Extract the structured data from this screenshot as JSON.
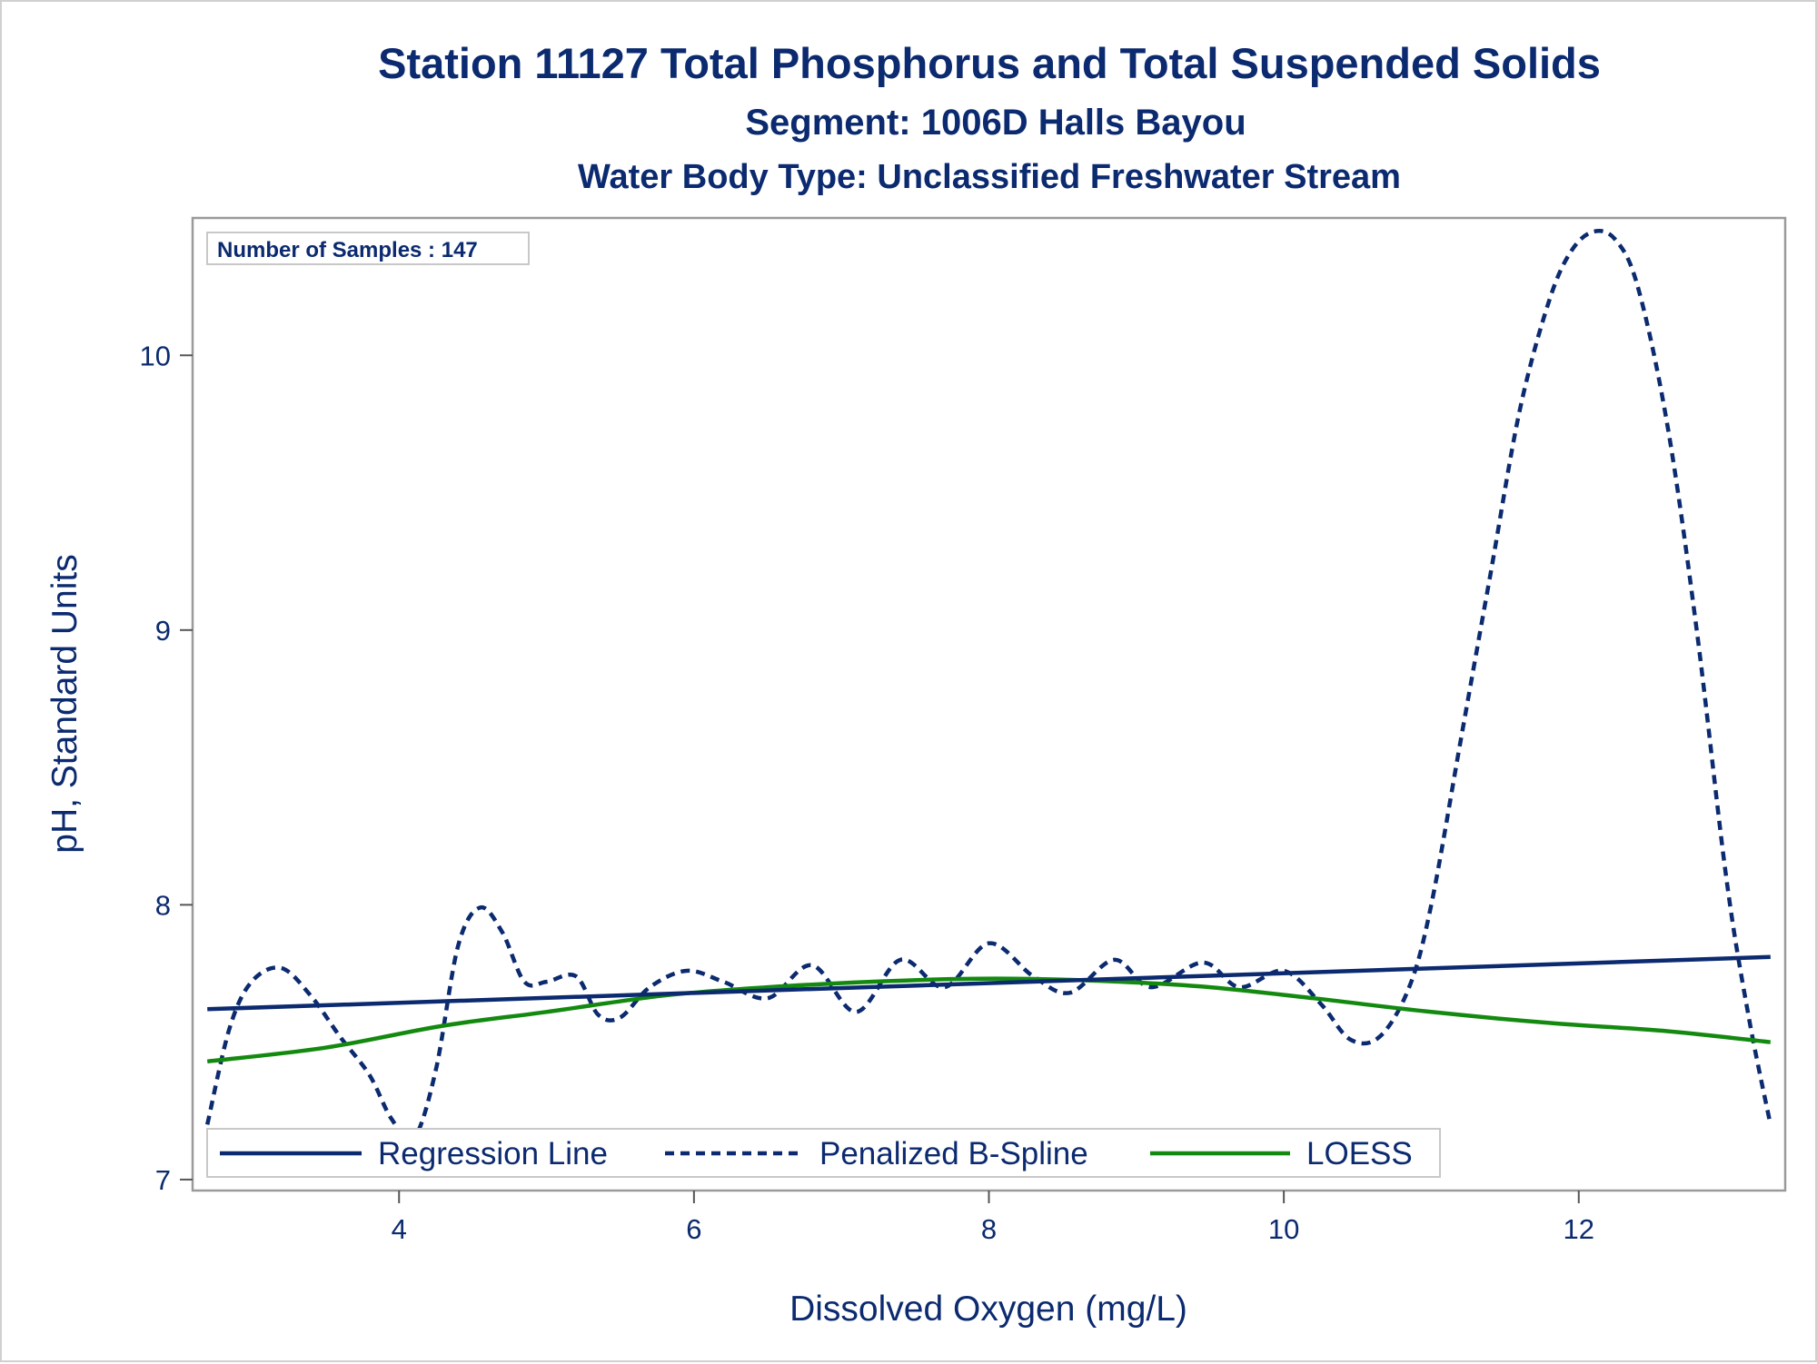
{
  "chart_data": {
    "type": "line",
    "title": "Station 11127  Total Phosphorus and Total Suspended Solids",
    "subtitle": "Segment: 1006D  Halls Bayou",
    "subtitle2": "Water Body Type: Unclassified Freshwater Stream",
    "xlabel": "Dissolved Oxygen (mg/L)",
    "ylabel": "pH, Standard Units",
    "xlim": [
      2.6,
      13.4
    ],
    "ylim": [
      6.96,
      10.5
    ],
    "xticks": [
      4,
      6,
      8,
      10,
      12
    ],
    "yticks": [
      7,
      8,
      9,
      10
    ],
    "inset": "Number of Samples : 147",
    "grid": false,
    "legend_position": "bottom-left-inside",
    "series": [
      {
        "name": "Regression Line",
        "style": "solid",
        "color": "#0b2a6f",
        "x": [
          2.7,
          13.3
        ],
        "y": [
          7.62,
          7.81
        ]
      },
      {
        "name": "Penalized B-Spline",
        "style": "dashed",
        "color": "#0b2a6f",
        "x": [
          2.7,
          2.85,
          3.0,
          3.2,
          3.4,
          3.6,
          3.8,
          3.95,
          4.1,
          4.25,
          4.4,
          4.55,
          4.7,
          4.85,
          5.0,
          5.2,
          5.35,
          5.5,
          5.7,
          5.95,
          6.2,
          6.5,
          6.8,
          7.1,
          7.4,
          7.7,
          8.0,
          8.3,
          8.55,
          8.85,
          9.1,
          9.45,
          9.7,
          10.0,
          10.25,
          10.45,
          10.65,
          10.85,
          11.0,
          11.2,
          11.4,
          11.6,
          11.8,
          11.95,
          12.1,
          12.25,
          12.4,
          12.6,
          12.8,
          13.0,
          13.15,
          13.3
        ],
        "y": [
          7.2,
          7.55,
          7.72,
          7.77,
          7.67,
          7.52,
          7.38,
          7.22,
          7.15,
          7.4,
          7.85,
          7.99,
          7.9,
          7.72,
          7.72,
          7.74,
          7.6,
          7.59,
          7.7,
          7.76,
          7.72,
          7.66,
          7.78,
          7.61,
          7.8,
          7.7,
          7.86,
          7.74,
          7.68,
          7.8,
          7.7,
          7.79,
          7.7,
          7.76,
          7.64,
          7.51,
          7.52,
          7.7,
          8.0,
          8.6,
          9.2,
          9.8,
          10.2,
          10.38,
          10.45,
          10.42,
          10.25,
          9.75,
          9.0,
          8.1,
          7.6,
          7.2
        ]
      },
      {
        "name": "LOESS",
        "style": "solid",
        "color": "#138a0f",
        "x": [
          2.7,
          3.5,
          4.3,
          5.0,
          5.8,
          6.5,
          7.2,
          7.8,
          8.3,
          8.9,
          9.5,
          10.2,
          11.0,
          11.8,
          12.6,
          13.3
        ],
        "y": [
          7.43,
          7.48,
          7.56,
          7.61,
          7.67,
          7.7,
          7.72,
          7.73,
          7.73,
          7.72,
          7.7,
          7.66,
          7.61,
          7.57,
          7.54,
          7.5
        ]
      }
    ]
  }
}
